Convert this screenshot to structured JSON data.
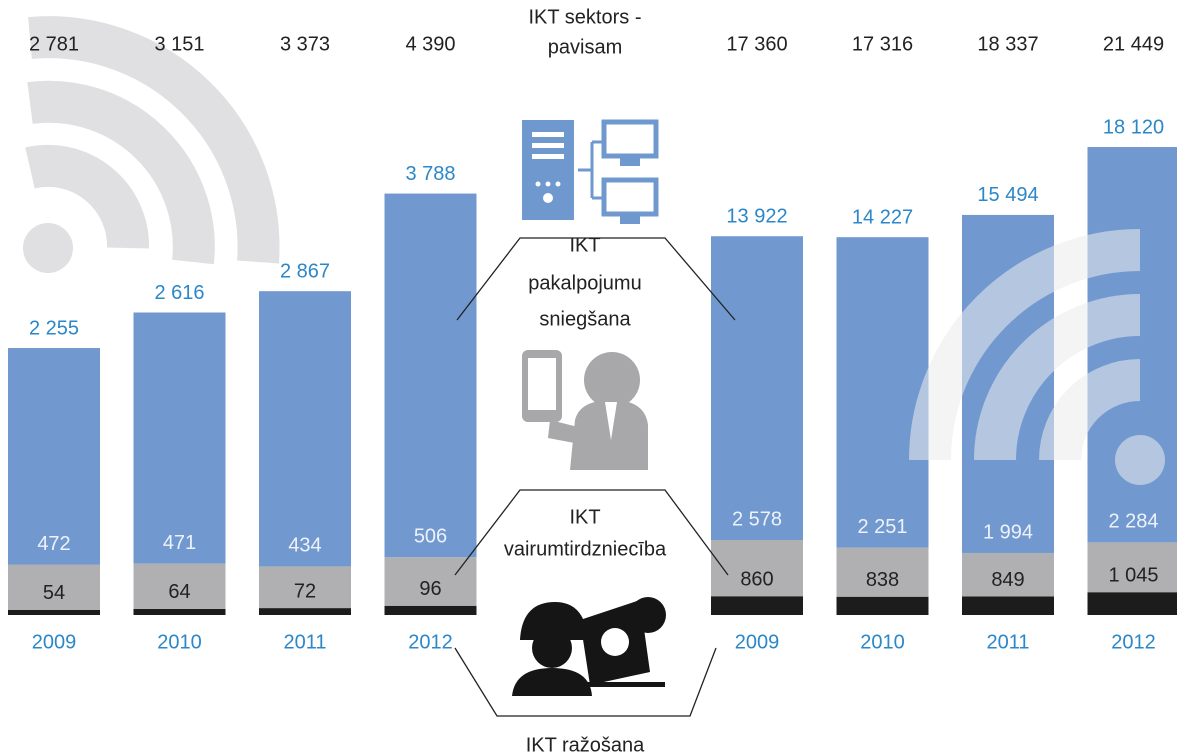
{
  "total_label": [
    "IKT sektors -",
    "pavisam"
  ],
  "legend": [
    {
      "lines": [
        "IKT",
        "pakalpojumu",
        "sniegšana"
      ]
    },
    {
      "lines": [
        "IKT",
        "vairumtirdzniecība"
      ]
    },
    {
      "lines": [
        "IKT ražošana"
      ]
    }
  ],
  "chart_data": [
    {
      "type": "bar",
      "stacked": true,
      "categories": [
        "2009",
        "2010",
        "2011",
        "2012"
      ],
      "totals": {
        "values": [
          2781,
          3151,
          3373,
          4390
        ],
        "value_labels": [
          "2 781",
          "3 151",
          "3 373",
          "4 390"
        ]
      },
      "series": [
        {
          "color": "#1c1c1c",
          "values": [
            54,
            64,
            72,
            96
          ],
          "value_labels": [
            "54",
            "64",
            "72",
            "96"
          ]
        },
        {
          "color": "#b0b0b2",
          "values": [
            472,
            471,
            434,
            506
          ],
          "value_labels": [
            "472",
            "471",
            "434",
            "506"
          ]
        },
        {
          "color": "#7199cf",
          "values": [
            2255,
            2616,
            2867,
            3788
          ],
          "value_labels": [
            "2 255",
            "2 616",
            "2 867",
            "3 788"
          ]
        }
      ],
      "ylim": [
        0,
        5000
      ]
    },
    {
      "type": "bar",
      "stacked": true,
      "categories": [
        "2009",
        "2010",
        "2011",
        "2012"
      ],
      "totals": {
        "values": [
          17360,
          17316,
          18337,
          21449
        ],
        "value_labels": [
          "17 360",
          "17 316",
          "18 337",
          "21 449"
        ]
      },
      "series": [
        {
          "color": "#1c1c1c",
          "values": [
            860,
            838,
            849,
            1045
          ],
          "value_labels": [
            "860",
            "838",
            "849",
            "1 045"
          ]
        },
        {
          "color": "#b0b0b2",
          "values": [
            2578,
            2251,
            1994,
            2284
          ],
          "value_labels": [
            "2 578",
            "2 251",
            "1 994",
            "2 284"
          ]
        },
        {
          "color": "#7199cf",
          "values": [
            13922,
            14227,
            15494,
            18120
          ],
          "value_labels": [
            "13 922",
            "14 227",
            "15 494",
            "18 120"
          ]
        }
      ],
      "ylim": [
        0,
        22000
      ]
    }
  ]
}
